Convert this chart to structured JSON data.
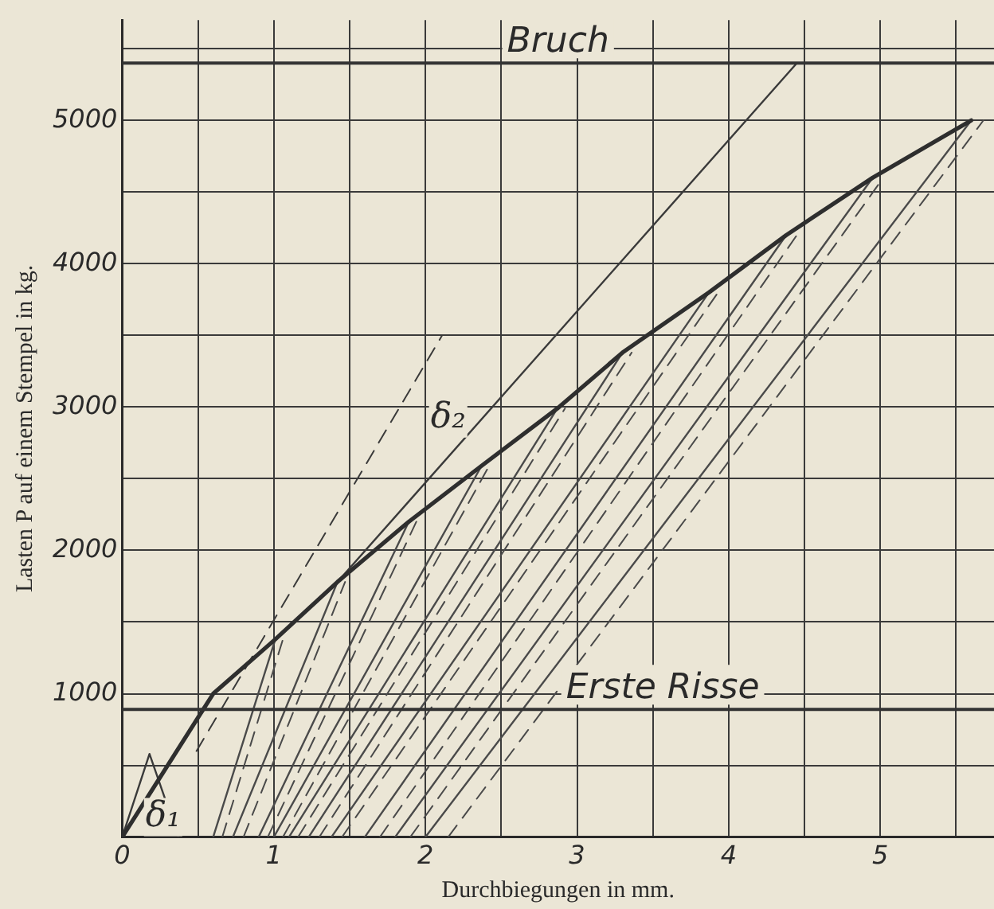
{
  "chart_data": {
    "type": "line",
    "xlabel": "Durchbiegungen in mm.",
    "ylabel": "Lasten P auf einem Stempel in kg.",
    "xlim": [
      0,
      5.75
    ],
    "ylim": [
      0,
      5700
    ],
    "xticks": [
      0,
      {
        "value": 0.5,
        "label": null
      },
      1,
      {
        "value": 1.5,
        "label": null
      },
      2,
      {
        "value": 2.5,
        "label": null
      },
      3,
      {
        "value": 3.5,
        "label": null
      },
      4,
      {
        "value": 4.5,
        "label": null
      },
      5,
      {
        "value": 5.5,
        "label": null
      }
    ],
    "yticks": [
      {
        "value": 0,
        "label": null
      },
      {
        "value": 500,
        "label": null
      },
      1000,
      {
        "value": 1500,
        "label": null
      },
      2000,
      {
        "value": 2500,
        "label": null
      },
      3000,
      {
        "value": 3500,
        "label": null
      },
      4000,
      {
        "value": 4500,
        "label": null
      },
      5000,
      {
        "value": 5500,
        "label": null
      }
    ],
    "grid": true,
    "legend": false,
    "marker": "none",
    "ref_lines": [
      {
        "axis": "y",
        "value": 5400,
        "label": "Bruch",
        "color": "#333333"
      },
      {
        "axis": "y",
        "value": 890,
        "label": "Erste Risse",
        "color": "#333333"
      }
    ],
    "annotations": [
      {
        "text": "δ₂",
        "x": 2.15,
        "y": 2920
      },
      {
        "text": "δ₁",
        "x": 0.27,
        "y": 140
      }
    ],
    "series": [
      {
        "color": "#2e2e2e",
        "line_style": "solid",
        "x": [
          0,
          0.6,
          1.01,
          1.42,
          1.89,
          2.37,
          2.87,
          3.3,
          3.87,
          4.38,
          4.95,
          5.6
        ],
        "values": [
          0,
          1000,
          1380,
          1780,
          2200,
          2590,
          2990,
          3380,
          3800,
          4200,
          4600,
          5000
        ]
      },
      {
        "color": "#3a3a3a",
        "line_style": "solid",
        "x": [
          0,
          0.18,
          0.37
        ],
        "values": [
          0,
          580,
          0
        ]
      },
      {
        "color": "#3a3a3a",
        "line_style": "solid",
        "x": [
          1.42,
          4.45
        ],
        "values": [
          1780,
          5400
        ]
      },
      {
        "color": "#3a3a3a",
        "line_style": "dashed",
        "x": [
          0.49,
          2.11
        ],
        "values": [
          600,
          3500
        ]
      },
      {
        "color": "#4a4a4a",
        "line_style": "solid",
        "x": [
          0.6,
          1.01
        ],
        "values": [
          0,
          1380
        ]
      },
      {
        "color": "#4a4a4a",
        "line_style": "solid",
        "x": [
          0.73,
          1.42
        ],
        "values": [
          0,
          1780
        ]
      },
      {
        "color": "#4a4a4a",
        "line_style": "solid",
        "x": [
          0.9,
          1.89
        ],
        "values": [
          0,
          2200
        ]
      },
      {
        "color": "#4a4a4a",
        "line_style": "solid",
        "x": [
          1.0,
          2.37
        ],
        "values": [
          0,
          2590
        ]
      },
      {
        "color": "#4a4a4a",
        "line_style": "solid",
        "x": [
          1.1,
          2.87
        ],
        "values": [
          0,
          2990
        ]
      },
      {
        "color": "#4a4a4a",
        "line_style": "solid",
        "x": [
          1.23,
          3.3
        ],
        "values": [
          0,
          3380
        ]
      },
      {
        "color": "#4a4a4a",
        "line_style": "solid",
        "x": [
          1.38,
          3.87
        ],
        "values": [
          0,
          3800
        ]
      },
      {
        "color": "#4a4a4a",
        "line_style": "solid",
        "x": [
          1.6,
          4.38
        ],
        "values": [
          0,
          4200
        ]
      },
      {
        "color": "#4a4a4a",
        "line_style": "solid",
        "x": [
          1.8,
          4.95
        ],
        "values": [
          0,
          4600
        ]
      },
      {
        "color": "#4a4a4a",
        "line_style": "solid",
        "x": [
          2.0,
          5.6
        ],
        "values": [
          0,
          5000
        ]
      },
      {
        "color": "#4a4a4a",
        "line_style": "dashed",
        "x": [
          0.66,
          1.06
        ],
        "values": [
          0,
          1380
        ]
      },
      {
        "color": "#4a4a4a",
        "line_style": "dashed",
        "x": [
          0.8,
          1.47
        ],
        "values": [
          0,
          1780
        ]
      },
      {
        "color": "#4a4a4a",
        "line_style": "dashed",
        "x": [
          0.96,
          1.94
        ],
        "values": [
          0,
          2200
        ]
      },
      {
        "color": "#4a4a4a",
        "line_style": "dashed",
        "x": [
          1.06,
          2.42
        ],
        "values": [
          0,
          2590
        ]
      },
      {
        "color": "#4a4a4a",
        "line_style": "dashed",
        "x": [
          1.16,
          2.92
        ],
        "values": [
          0,
          2990
        ]
      },
      {
        "color": "#4a4a4a",
        "line_style": "dashed",
        "x": [
          1.3,
          3.36
        ],
        "values": [
          0,
          3380
        ]
      },
      {
        "color": "#4a4a4a",
        "line_style": "dashed",
        "x": [
          1.45,
          3.93
        ],
        "values": [
          0,
          3800
        ]
      },
      {
        "color": "#4a4a4a",
        "line_style": "dashed",
        "x": [
          1.7,
          4.45
        ],
        "values": [
          0,
          4200
        ]
      },
      {
        "color": "#4a4a4a",
        "line_style": "dashed",
        "x": [
          1.9,
          5.02
        ],
        "values": [
          0,
          4600
        ]
      },
      {
        "color": "#4a4a4a",
        "line_style": "dashed",
        "x": [
          2.15,
          5.68
        ],
        "values": [
          0,
          5000
        ]
      }
    ]
  }
}
